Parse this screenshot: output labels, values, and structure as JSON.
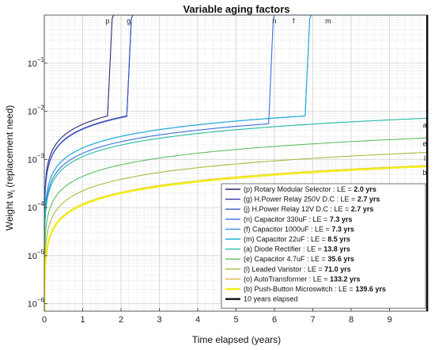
{
  "chart_data": {
    "type": "line",
    "title": "Variable aging factors",
    "xlabel": "Time elapsed (years)",
    "ylabel_main": "Weight w",
    "ylabel_sub": "i",
    "ylabel_rest": " (replacement need)",
    "y_scale": "log",
    "xlim": [
      0,
      10
    ],
    "ylim": [
      7e-07,
      1
    ],
    "xticks": [
      0,
      1,
      2,
      3,
      4,
      5,
      6,
      7,
      8,
      9
    ],
    "xtick_labels": [
      "0",
      "1",
      "2",
      "3",
      "4",
      "5",
      "6",
      "7",
      "8",
      "9"
    ],
    "yticks": [
      1e-06,
      1e-05,
      0.0001,
      0.001,
      0.01,
      0.1
    ],
    "ytick_labels": [
      {
        "base": "10",
        "exp": "−6"
      },
      {
        "base": "10",
        "exp": "−5"
      },
      {
        "base": "10",
        "exp": "−4"
      },
      {
        "base": "10",
        "exp": "−3"
      },
      {
        "base": "10",
        "exp": "−2"
      },
      {
        "base": "10",
        "exp": "−1"
      }
    ],
    "grid": true,
    "legend_position": "bottom-right",
    "series": [
      {
        "label": "p",
        "text": "(p) Rotary Modular Selector : LE = ",
        "le": "2.0 yrs",
        "color": "#2b2870",
        "life": 2.0,
        "y_end": null
      },
      {
        "label": "g",
        "text": "(g) H.Power Relay 250V D.C : LE = ",
        "le": "2.7 yrs",
        "color": "#3a36a8",
        "life": 2.7,
        "y_end": null
      },
      {
        "label": "",
        "text": "(j) H.Power Relay 12V D.C  : LE = ",
        "le": "2.7 yrs",
        "color": "#3a55c9",
        "life": 2.7,
        "y_end": null
      },
      {
        "label": "n",
        "text": "(n) Capacitor 330uF : LE = ",
        "le": "7.3 yrs",
        "color": "#3b6fe0",
        "life": 7.3,
        "y_end": null
      },
      {
        "label": "f",
        "text": "(f) Capacitor 1000uF : LE = ",
        "le": "7.3 yrs",
        "color": "#3a8ee6",
        "life": 7.3,
        "y_end": null
      },
      {
        "label": "m",
        "text": "(m) Capacitor 22uF : LE = ",
        "le": "8.5 yrs",
        "color": "#1fb0d8",
        "life": 8.5,
        "y_end": null
      },
      {
        "label": "a",
        "text": "(a) Diode Rectifier : LE = ",
        "le": "13.8 yrs",
        "color": "#21bca0",
        "life": 13.8,
        "y_end": 0.0072
      },
      {
        "label": "e",
        "text": "(e) Capacitor 4.7uF : LE = ",
        "le": "35.6 yrs",
        "color": "#5fbf64",
        "life": 35.6,
        "y_end": 0.0028
      },
      {
        "label": "l",
        "text": "(l) Leaded Varistor : LE = ",
        "le": "71.0 yrs",
        "color": "#a7bd3c",
        "life": 71.0,
        "y_end": 0.0014
      },
      {
        "label": "",
        "text": "(o) AutoTransformer : LE = ",
        "le": "133.2 yrs",
        "color": "#e2b43a",
        "life": 133.2,
        "y_end": 0.00075
      },
      {
        "label": "b",
        "text": "(b) Push-Button Microswitch : LE = ",
        "le": "139.6 yrs",
        "color": "#f2ee18",
        "life": 139.6,
        "y_end": 0.00072
      }
    ],
    "vline": {
      "x": 10,
      "text": "10 years elapsed",
      "color": "#000000"
    }
  }
}
